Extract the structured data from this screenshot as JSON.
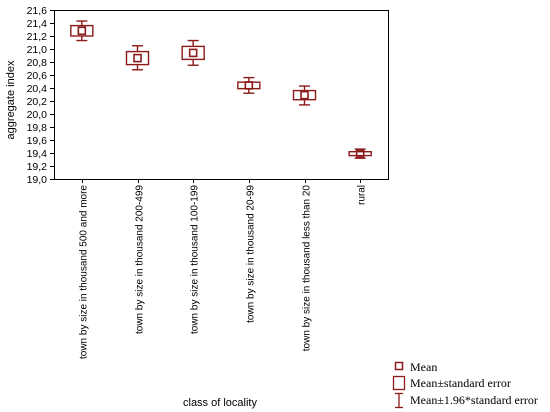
{
  "chart_data": {
    "type": "box",
    "xlabel": "class of locality",
    "ylabel": "aggregate index",
    "ylim": [
      19.0,
      21.6
    ],
    "yticks": [
      "19,0",
      "19,2",
      "19,4",
      "19,6",
      "19,8",
      "20,0",
      "20,2",
      "20,4",
      "20,6",
      "20,8",
      "21,0",
      "21,2",
      "21,4",
      "21,6"
    ],
    "categories": [
      "town by size in thousand 500 and more",
      "town by size in thousand 200-499",
      "town by size in thousand 100-199",
      "town by size in thousand 20-99",
      "town by size in thousand less than 20",
      "rural"
    ],
    "mean": [
      21.28,
      20.86,
      20.94,
      20.44,
      20.29,
      19.39
    ],
    "se_low": [
      21.2,
      20.76,
      20.84,
      20.39,
      20.22,
      19.36
    ],
    "se_high": [
      21.36,
      20.96,
      21.04,
      20.49,
      20.36,
      19.42
    ],
    "ci_low": [
      21.13,
      20.68,
      20.75,
      20.32,
      20.14,
      19.32
    ],
    "ci_high": [
      21.43,
      21.05,
      21.13,
      20.56,
      20.43,
      19.46
    ],
    "color": "#8b1a1a",
    "grid": false,
    "legend_position": "bottom-right",
    "legend": [
      "Mean",
      "Mean±standard error",
      "Mean±1.96*standard error"
    ]
  }
}
